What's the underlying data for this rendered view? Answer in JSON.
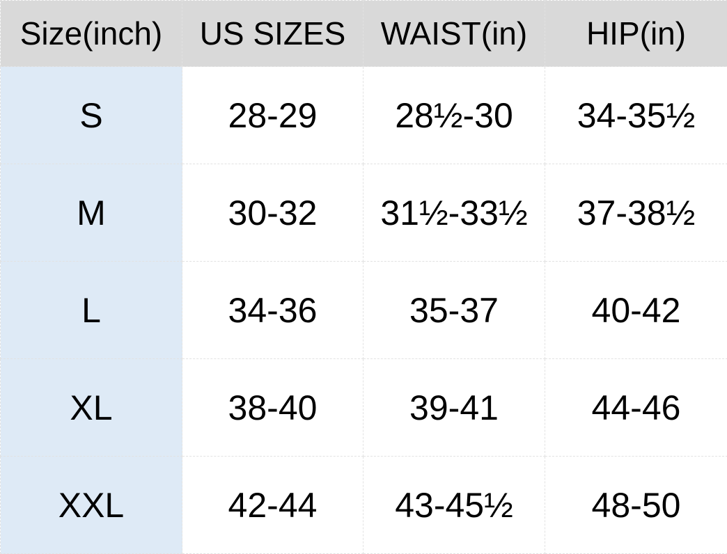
{
  "headers": [
    "Size(inch)",
    "US SIZES",
    "WAIST(in)",
    "HIP(in)"
  ],
  "rows": [
    [
      "S",
      "28-29",
      "28½-30",
      "34-35½"
    ],
    [
      "M",
      "30-32",
      "31½-33½",
      "37-38½"
    ],
    [
      "L",
      "34-36",
      "35-37",
      "40-42"
    ],
    [
      "XL",
      "38-40",
      "39-41",
      "44-46"
    ],
    [
      "XXL",
      "42-44",
      "43-45½",
      "48-50"
    ]
  ],
  "colors": {
    "header_bg": "#d9d9d9",
    "size_column_bg": "#deeaf6",
    "cell_bg": "#ffffff"
  }
}
